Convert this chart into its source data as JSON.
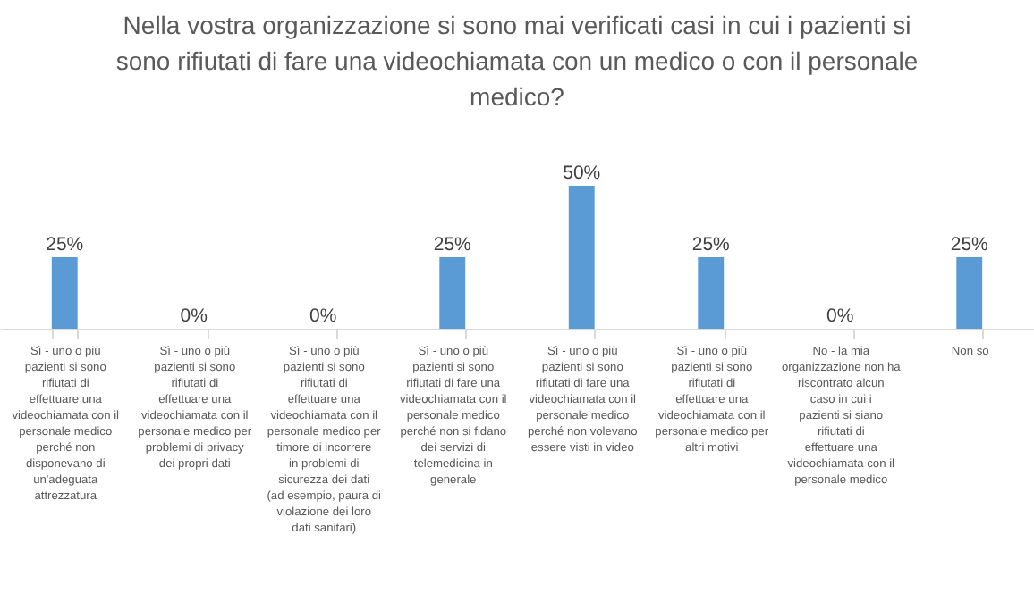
{
  "chart_data": {
    "type": "bar",
    "title": "Nella vostra organizzazione si sono mai verificati casi in cui i pazienti si sono rifiutati di fare una videochiamata con un medico o con il personale medico?",
    "categories": [
      "Sì - uno o più pazienti si sono rifiutati di effettuare una videochiamata con il personale medico perché non disponevano di un'adeguata attrezzatura",
      "Sì - uno o più pazienti si sono rifiutati di effettuare una videochiamata con il personale medico per problemi di privacy dei propri dati",
      "Sì - uno o più pazienti si sono rifiutati di effettuare una videochiamata con il personale medico per timore di incorrere in problemi di sicurezza dei dati (ad esempio, paura di violazione dei loro dati sanitari)",
      "Sì - uno o più pazienti si sono rifiutati di fare una videochiamata con il personale medico perché non si fidano dei servizi di telemedicina in generale",
      "Sì - uno o più pazienti si sono rifiutati di fare una videochiamata con il personale medico perché non volevano essere visti in video",
      "Sì - uno o più pazienti si sono rifiutati di effettuare una videochiamata con il personale medico per altri motivi",
      "No - la mia organizzazione non ha riscontrato alcun caso in cui i pazienti si siano rifiutati di effettuare una videochiamata con il personale medico",
      "Non so"
    ],
    "values": [
      25,
      0,
      0,
      25,
      50,
      25,
      0,
      25
    ],
    "value_labels": [
      "25%",
      "0%",
      "0%",
      "25%",
      "50%",
      "25%",
      "0%",
      "25%"
    ],
    "color": "#5b9bd5",
    "tick_labels": "x"
  }
}
